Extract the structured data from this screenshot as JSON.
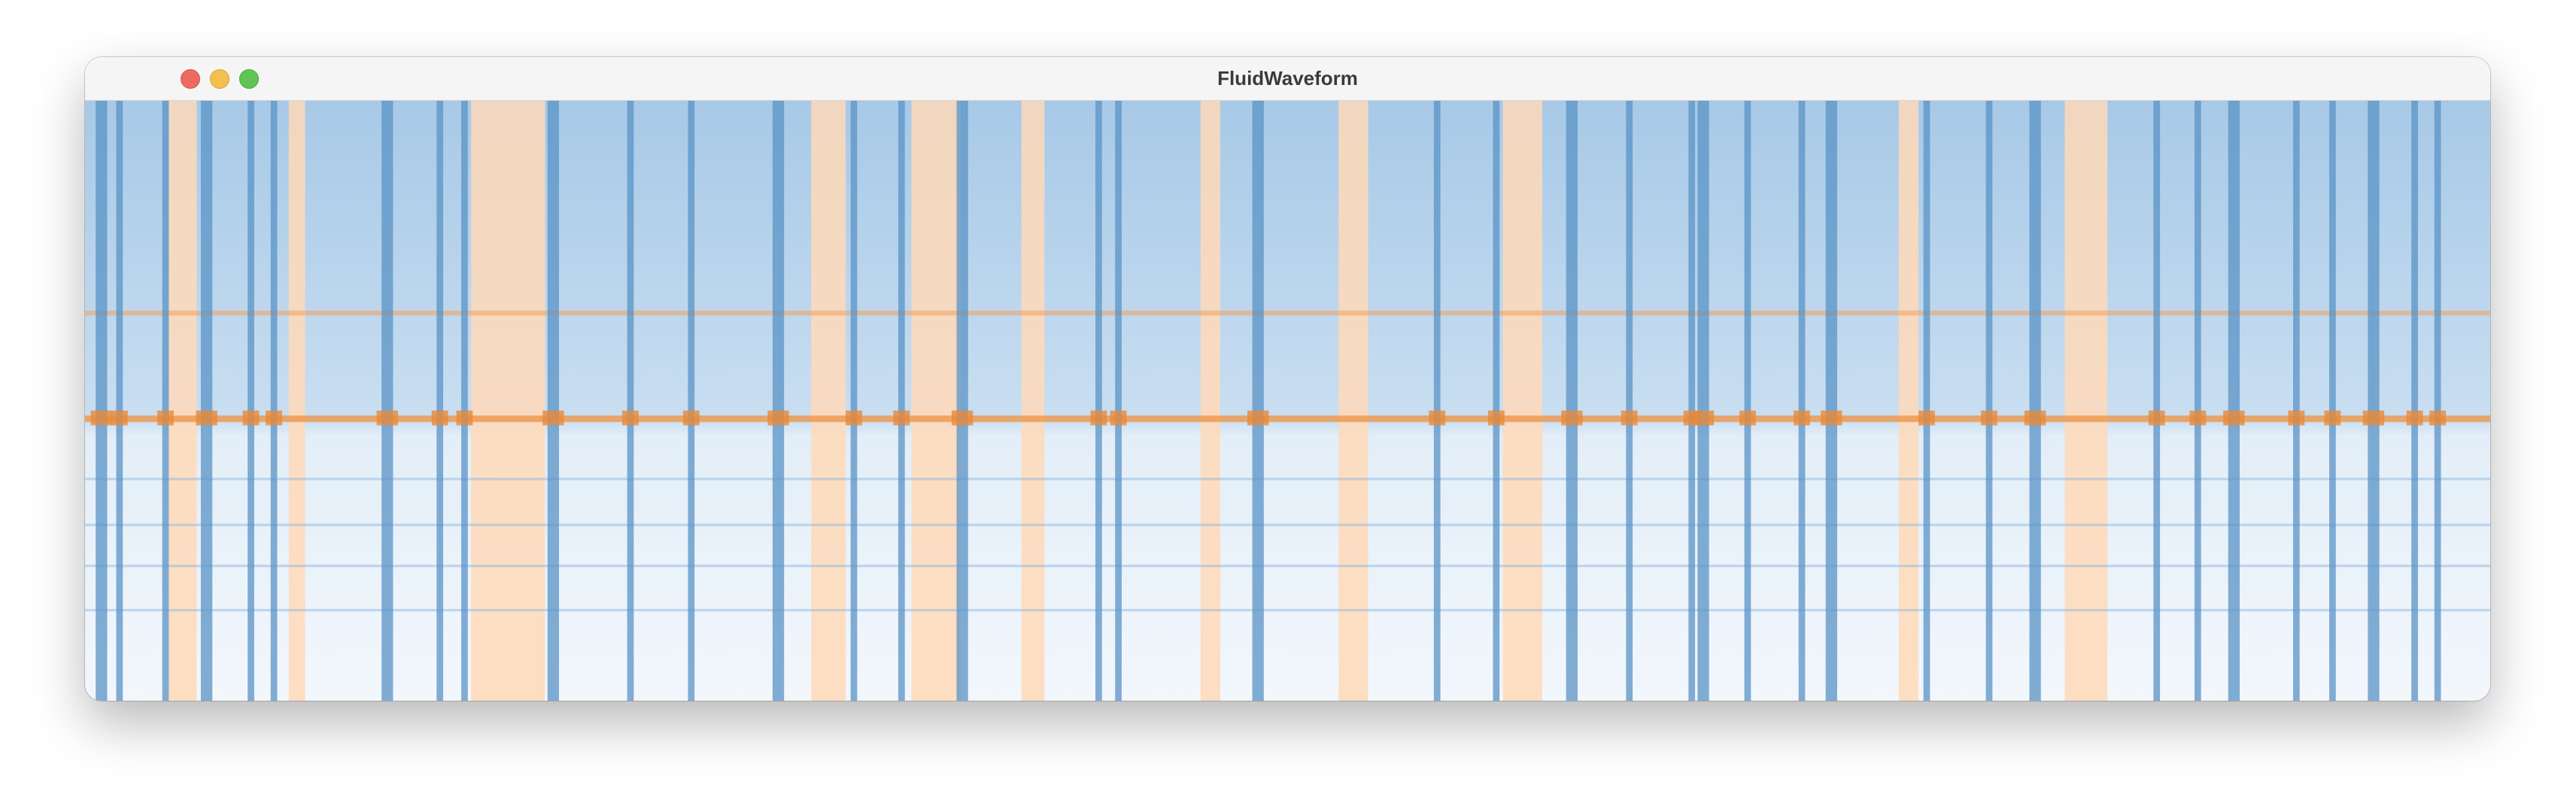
{
  "window": {
    "title": "FluidWaveform"
  }
}
